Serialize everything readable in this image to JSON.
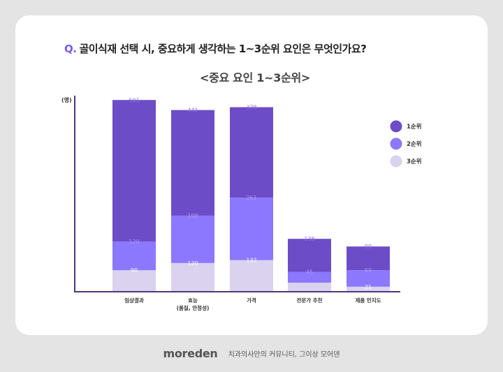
{
  "question": {
    "prefix": "Q.",
    "text": "골이식재 선택 시, 중요하게 생각하는 1~3순위 요인은 무엇인가요?"
  },
  "footer": {
    "logo": "moreden",
    "tagline": "치과의사만의 커뮤니티, 그이상 모어덴"
  },
  "chart_data": {
    "type": "bar",
    "stacked": true,
    "title": "<중요 요인 1~3순위>",
    "ylabel": "(명)",
    "xlabel": "",
    "categories": [
      [
        "임상결과"
      ],
      [
        "효능",
        "(품질, 안정성)"
      ],
      [
        "가격"
      ],
      [
        "전문가 추천"
      ],
      [
        "제품 인지도"
      ]
    ],
    "series": [
      {
        "name": "3순위",
        "color": "#dad2ef",
        "values": [
          90,
          120,
          132,
          38,
          21
        ],
        "labels": [
          "90",
          "120",
          "132",
          null,
          "21"
        ]
      },
      {
        "name": "2순위",
        "color": "#8b78ff",
        "values": [
          120,
          198,
          261,
          45,
          69
        ],
        "labels": [
          "120",
          "198",
          "261",
          "45",
          "69"
        ]
      },
      {
        "name": "1순위",
        "color": "#6d4cc7",
        "values": [
          591,
          441,
          378,
          138,
          99
        ],
        "labels": [
          "591",
          "441",
          "378",
          "138",
          "99"
        ]
      }
    ],
    "legend": {
      "position": "right",
      "order": [
        "1순위",
        "2순위",
        "3순위"
      ]
    },
    "grid": false
  }
}
